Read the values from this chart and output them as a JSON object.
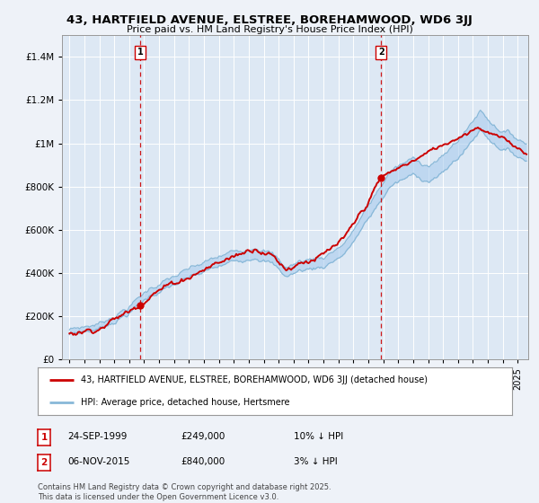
{
  "title": "43, HARTFIELD AVENUE, ELSTREE, BOREHAMWOOD, WD6 3JJ",
  "subtitle": "Price paid vs. HM Land Registry's House Price Index (HPI)",
  "background_color": "#eef2f8",
  "plot_bg_color": "#dde8f4",
  "legend_line1": "43, HARTFIELD AVENUE, ELSTREE, BOREHAMWOOD, WD6 3JJ (detached house)",
  "legend_line2": "HPI: Average price, detached house, Hertsmere",
  "red_color": "#cc0000",
  "blue_color": "#88b8d8",
  "blue_fill": "#aaccee",
  "annotation1": {
    "label": "1",
    "date_str": "24-SEP-1999",
    "price": "£249,000",
    "hpi": "10% ↓ HPI",
    "x_year": 1999.73,
    "y_val": 249000
  },
  "annotation2": {
    "label": "2",
    "date_str": "06-NOV-2015",
    "price": "£840,000",
    "hpi": "3% ↓ HPI",
    "x_year": 2015.85,
    "y_val": 840000
  },
  "footer": "Contains HM Land Registry data © Crown copyright and database right 2025.\nThis data is licensed under the Open Government Licence v3.0.",
  "ylim": [
    0,
    1500000
  ],
  "yticks": [
    0,
    200000,
    400000,
    600000,
    800000,
    1000000,
    1200000,
    1400000
  ],
  "ytick_labels": [
    "£0",
    "£200K",
    "£400K",
    "£600K",
    "£800K",
    "£1M",
    "£1.2M",
    "£1.4M"
  ],
  "xlim_start": 1994.5,
  "xlim_end": 2025.7
}
